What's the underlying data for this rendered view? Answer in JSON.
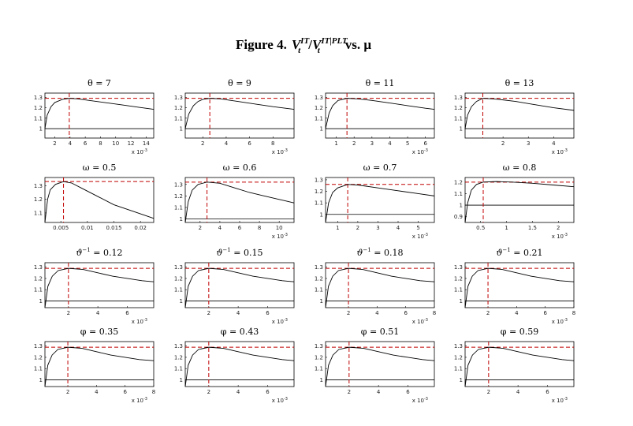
{
  "figure_title": {
    "label": "Figure 4.",
    "num": "V",
    "num_sub": "t",
    "num_sup": "IT",
    "slash": "/",
    "den": "V",
    "den_sub": "t",
    "den_sup": "IT|PLT",
    "tail": "vs. μ"
  },
  "chart_data": [
    {
      "type": "line",
      "title": "θ = 7",
      "x": [
        0.7,
        1,
        1.5,
        2,
        3,
        3.9,
        5,
        7,
        9,
        11,
        13,
        15
      ],
      "values": [
        1.0,
        1.13,
        1.21,
        1.25,
        1.28,
        1.29,
        1.285,
        1.265,
        1.245,
        1.225,
        1.205,
        1.185
      ],
      "xlim": [
        0.7,
        15
      ],
      "ylim": [
        0.91,
        1.34
      ],
      "xticks": [
        2,
        4,
        6,
        8,
        10,
        12,
        14
      ],
      "yticks": [
        1,
        1.1,
        1.2,
        1.3
      ],
      "vline": 3.9,
      "hline": 1.29,
      "baseline": 1,
      "color": "#000000",
      "ref_color": "#c00000",
      "x_multiplier": {
        "base": "x 10",
        "exp": "-3"
      }
    },
    {
      "type": "line",
      "title": "θ = 9",
      "x": [
        0.5,
        0.8,
        1.2,
        1.6,
        2,
        2.6,
        3.5,
        5,
        6.5,
        8,
        9.8
      ],
      "values": [
        1.0,
        1.14,
        1.22,
        1.26,
        1.28,
        1.29,
        1.285,
        1.26,
        1.235,
        1.21,
        1.185
      ],
      "xlim": [
        0.5,
        9.8
      ],
      "ylim": [
        0.91,
        1.34
      ],
      "xticks": [
        2,
        4,
        6,
        8
      ],
      "yticks": [
        1,
        1.1,
        1.2,
        1.3
      ],
      "vline": 2.6,
      "hline": 1.29,
      "baseline": 1,
      "color": "#000000",
      "ref_color": "#c00000",
      "x_multiplier": {
        "base": "x 10",
        "exp": "-3"
      }
    },
    {
      "type": "line",
      "title": "θ = 11",
      "x": [
        0.4,
        0.6,
        0.8,
        1.1,
        1.6,
        2.2,
        3,
        4,
        5,
        6,
        6.5
      ],
      "values": [
        1.0,
        1.15,
        1.22,
        1.27,
        1.29,
        1.285,
        1.27,
        1.245,
        1.22,
        1.195,
        1.185
      ],
      "xlim": [
        0.4,
        6.5
      ],
      "ylim": [
        0.91,
        1.34
      ],
      "xticks": [
        1,
        2,
        3,
        4,
        5,
        6
      ],
      "yticks": [
        1,
        1.1,
        1.2,
        1.3
      ],
      "vline": 1.6,
      "hline": 1.29,
      "baseline": 1,
      "color": "#000000",
      "ref_color": "#c00000",
      "x_multiplier": {
        "base": "x 10",
        "exp": "-3"
      }
    },
    {
      "type": "line",
      "title": "θ = 13",
      "x": [
        0.5,
        0.6,
        0.75,
        0.95,
        1.2,
        1.6,
        2,
        2.5,
        3,
        3.5,
        4,
        4.8
      ],
      "values": [
        1.0,
        1.13,
        1.21,
        1.26,
        1.29,
        1.285,
        1.275,
        1.26,
        1.24,
        1.22,
        1.2,
        1.175
      ],
      "xlim": [
        0.5,
        4.8
      ],
      "ylim": [
        0.91,
        1.34
      ],
      "xticks": [
        2,
        3,
        4
      ],
      "yticks": [
        1,
        1.1,
        1.2,
        1.3
      ],
      "vline": 1.2,
      "hline": 1.29,
      "baseline": 1,
      "color": "#000000",
      "ref_color": "#c00000",
      "x_multiplier": {
        "base": "x 10",
        "exp": "-3"
      }
    },
    {
      "type": "line",
      "title": "ω = 0.5",
      "x": [
        0.002,
        0.0025,
        0.003,
        0.004,
        0.0055,
        0.007,
        0.009,
        0.012,
        0.015,
        0.018,
        0.0225
      ],
      "values": [
        1.03,
        1.2,
        1.27,
        1.31,
        1.33,
        1.32,
        1.28,
        1.22,
        1.16,
        1.12,
        1.06
      ],
      "xlim": [
        0.002,
        0.0225
      ],
      "ylim": [
        1.03,
        1.36
      ],
      "xticks": [
        0.005,
        0.01,
        0.015,
        0.02
      ],
      "yticks": [
        1.1,
        1.2,
        1.3
      ],
      "vline": 0.0055,
      "hline": 1.33,
      "color": "#000000",
      "ref_color": "#c00000"
    },
    {
      "type": "line",
      "title": "ω = 0.6",
      "x": [
        0.5,
        0.8,
        1.2,
        1.8,
        2.7,
        4,
        5.5,
        7,
        8.5,
        10,
        11.5
      ],
      "values": [
        0.97,
        1.15,
        1.25,
        1.3,
        1.32,
        1.31,
        1.27,
        1.23,
        1.2,
        1.17,
        1.14
      ],
      "xlim": [
        0.5,
        11.5
      ],
      "ylim": [
        0.97,
        1.36
      ],
      "xticks": [
        2,
        4,
        6,
        8,
        10
      ],
      "yticks": [
        1,
        1.1,
        1.2,
        1.3
      ],
      "vline": 2.7,
      "hline": 1.32,
      "baseline": 1,
      "color": "#000000",
      "ref_color": "#c00000",
      "x_multiplier": {
        "base": "x 10",
        "exp": "-3"
      }
    },
    {
      "type": "line",
      "title": "ω = 0.7",
      "x": [
        0.4,
        0.55,
        0.75,
        1,
        1.5,
        2,
        3,
        4,
        5,
        5.8
      ],
      "values": [
        0.93,
        1.1,
        1.19,
        1.23,
        1.26,
        1.255,
        1.23,
        1.205,
        1.18,
        1.16
      ],
      "xlim": [
        0.4,
        5.8
      ],
      "ylim": [
        0.93,
        1.32
      ],
      "xticks": [
        1,
        2,
        3,
        4,
        5
      ],
      "yticks": [
        1,
        1.1,
        1.2,
        1.3
      ],
      "vline": 1.5,
      "hline": 1.26,
      "baseline": 1,
      "color": "#000000",
      "ref_color": "#c00000",
      "x_multiplier": {
        "base": "x 10",
        "exp": "-3"
      }
    },
    {
      "type": "line",
      "title": "ω = 0.8",
      "x": [
        0.2,
        0.25,
        0.32,
        0.42,
        0.55,
        0.8,
        1.1,
        1.5,
        1.9,
        2.3
      ],
      "values": [
        0.85,
        1.02,
        1.13,
        1.18,
        1.2,
        1.205,
        1.2,
        1.19,
        1.175,
        1.16
      ],
      "xlim": [
        0.2,
        2.3
      ],
      "ylim": [
        0.85,
        1.24
      ],
      "xticks": [
        0.5,
        1,
        1.5,
        2
      ],
      "yticks": [
        0.9,
        1,
        1.1,
        1.2
      ],
      "vline": 0.55,
      "hline": 1.2,
      "baseline": 1,
      "color": "#000000",
      "ref_color": "#c00000",
      "x_multiplier": {
        "base": "x 10",
        "exp": "-3"
      }
    },
    {
      "type": "line",
      "title": {
        "symbol": "ϑ",
        "sup": "−1",
        "rest": " = 0.12"
      },
      "x": [
        0.4,
        0.6,
        0.9,
        1.3,
        2,
        3,
        4,
        5,
        6,
        7,
        7.8
      ],
      "values": [
        0.94,
        1.13,
        1.22,
        1.27,
        1.29,
        1.28,
        1.25,
        1.22,
        1.2,
        1.18,
        1.17
      ],
      "xlim": [
        0.4,
        7.8
      ],
      "ylim": [
        0.94,
        1.34
      ],
      "xticks": [
        2,
        4,
        6
      ],
      "yticks": [
        1,
        1.1,
        1.2,
        1.3
      ],
      "vline": 2,
      "hline": 1.29,
      "baseline": 1,
      "color": "#000000",
      "ref_color": "#c00000",
      "x_multiplier": {
        "base": "x 10",
        "exp": "-3"
      }
    },
    {
      "type": "line",
      "title": {
        "symbol": "ϑ",
        "sup": "−1",
        "rest": " = 0.15"
      },
      "x": [
        0.4,
        0.6,
        0.9,
        1.3,
        2,
        3,
        4,
        5,
        6,
        7,
        7.8
      ],
      "values": [
        0.94,
        1.13,
        1.22,
        1.27,
        1.29,
        1.28,
        1.25,
        1.22,
        1.2,
        1.18,
        1.17
      ],
      "xlim": [
        0.4,
        7.8
      ],
      "ylim": [
        0.94,
        1.34
      ],
      "xticks": [
        2,
        4,
        6
      ],
      "yticks": [
        1,
        1.1,
        1.2,
        1.3
      ],
      "vline": 2,
      "hline": 1.29,
      "baseline": 1,
      "color": "#000000",
      "ref_color": "#c00000",
      "x_multiplier": {
        "base": "x 10",
        "exp": "-3"
      }
    },
    {
      "type": "line",
      "title": {
        "symbol": "ϑ",
        "sup": "−1",
        "rest": " = 0.18"
      },
      "x": [
        0.4,
        0.6,
        0.9,
        1.3,
        2,
        3,
        4,
        5,
        6,
        7,
        8
      ],
      "values": [
        0.94,
        1.13,
        1.22,
        1.27,
        1.29,
        1.28,
        1.25,
        1.22,
        1.2,
        1.18,
        1.17
      ],
      "xlim": [
        0.4,
        8
      ],
      "ylim": [
        0.94,
        1.34
      ],
      "xticks": [
        2,
        4,
        6,
        8
      ],
      "yticks": [
        1,
        1.1,
        1.2,
        1.3
      ],
      "vline": 2,
      "hline": 1.29,
      "baseline": 1,
      "color": "#000000",
      "ref_color": "#c00000",
      "x_multiplier": {
        "base": "x 10",
        "exp": "-3"
      }
    },
    {
      "type": "line",
      "title": {
        "symbol": "ϑ",
        "sup": "−1",
        "rest": " = 0.21"
      },
      "x": [
        0.4,
        0.6,
        0.9,
        1.3,
        2,
        3,
        4,
        5,
        6,
        7,
        8
      ],
      "values": [
        0.94,
        1.13,
        1.22,
        1.27,
        1.29,
        1.28,
        1.25,
        1.22,
        1.2,
        1.18,
        1.17
      ],
      "xlim": [
        0.4,
        8
      ],
      "ylim": [
        0.94,
        1.34
      ],
      "xticks": [
        2,
        4,
        6,
        8
      ],
      "yticks": [
        1,
        1.1,
        1.2,
        1.3
      ],
      "vline": 2,
      "hline": 1.29,
      "baseline": 1,
      "color": "#000000",
      "ref_color": "#c00000",
      "x_multiplier": {
        "base": "x 10",
        "exp": "-3"
      }
    },
    {
      "type": "line",
      "title": "φ = 0.35",
      "x": [
        0.4,
        0.6,
        0.9,
        1.3,
        2,
        3,
        4,
        5,
        6,
        7,
        8
      ],
      "values": [
        0.94,
        1.13,
        1.22,
        1.27,
        1.29,
        1.28,
        1.25,
        1.22,
        1.2,
        1.18,
        1.17
      ],
      "xlim": [
        0.4,
        8
      ],
      "ylim": [
        0.94,
        1.34
      ],
      "xticks": [
        2,
        4,
        6,
        8
      ],
      "yticks": [
        1,
        1.1,
        1.2,
        1.3
      ],
      "vline": 2,
      "hline": 1.29,
      "baseline": 1,
      "color": "#000000",
      "ref_color": "#c00000",
      "x_multiplier": {
        "base": "x 10",
        "exp": "-3"
      }
    },
    {
      "type": "line",
      "title": "φ = 0.43",
      "x": [
        0.4,
        0.6,
        0.9,
        1.3,
        2,
        3,
        4,
        5,
        6,
        7,
        7.8
      ],
      "values": [
        0.94,
        1.13,
        1.22,
        1.27,
        1.29,
        1.28,
        1.25,
        1.22,
        1.2,
        1.18,
        1.17
      ],
      "xlim": [
        0.4,
        7.8
      ],
      "ylim": [
        0.94,
        1.34
      ],
      "xticks": [
        2,
        4,
        6
      ],
      "yticks": [
        1,
        1.1,
        1.2,
        1.3
      ],
      "vline": 2,
      "hline": 1.29,
      "baseline": 1,
      "color": "#000000",
      "ref_color": "#c00000",
      "x_multiplier": {
        "base": "x 10",
        "exp": "-3"
      }
    },
    {
      "type": "line",
      "title": "φ = 0.51",
      "x": [
        0.4,
        0.6,
        0.9,
        1.3,
        2,
        3,
        4,
        5,
        6,
        7,
        7.8
      ],
      "values": [
        0.94,
        1.13,
        1.22,
        1.27,
        1.29,
        1.28,
        1.25,
        1.22,
        1.2,
        1.18,
        1.17
      ],
      "xlim": [
        0.4,
        7.8
      ],
      "ylim": [
        0.94,
        1.34
      ],
      "xticks": [
        2,
        4,
        6
      ],
      "yticks": [
        1,
        1.1,
        1.2,
        1.3
      ],
      "vline": 2,
      "hline": 1.29,
      "baseline": 1,
      "color": "#000000",
      "ref_color": "#c00000",
      "x_multiplier": {
        "base": "x 10",
        "exp": "-3"
      }
    },
    {
      "type": "line",
      "title": "φ = 0.59",
      "x": [
        0.4,
        0.6,
        0.9,
        1.3,
        2,
        3,
        4,
        5,
        6,
        7,
        7.8
      ],
      "values": [
        0.94,
        1.13,
        1.22,
        1.27,
        1.29,
        1.28,
        1.25,
        1.22,
        1.2,
        1.18,
        1.17
      ],
      "xlim": [
        0.4,
        7.8
      ],
      "ylim": [
        0.94,
        1.34
      ],
      "xticks": [
        2,
        4,
        6
      ],
      "yticks": [
        1,
        1.1,
        1.2,
        1.3
      ],
      "vline": 2,
      "hline": 1.29,
      "baseline": 1,
      "color": "#000000",
      "ref_color": "#c00000",
      "x_multiplier": {
        "base": "x 10",
        "exp": "-3"
      }
    }
  ]
}
